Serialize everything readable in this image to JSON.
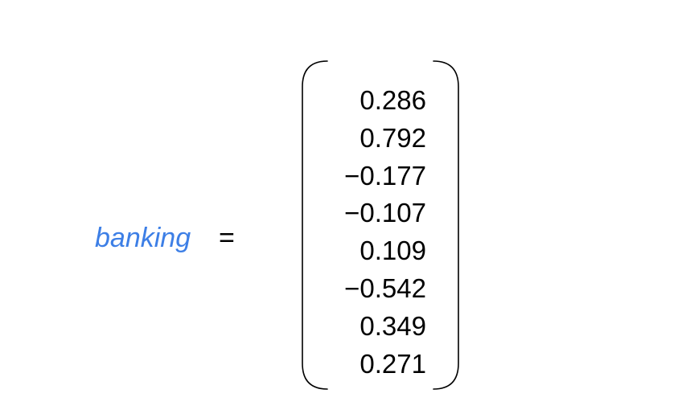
{
  "equation": {
    "word": "banking",
    "equals": "=",
    "word_color": "#3d7fe6",
    "text_color": "#000000",
    "bracket_color": "#000000",
    "vector": [
      "0.286",
      "0.792",
      "−0.177",
      "−0.107",
      "0.109",
      "−0.542",
      "0.349",
      "0.271"
    ]
  }
}
